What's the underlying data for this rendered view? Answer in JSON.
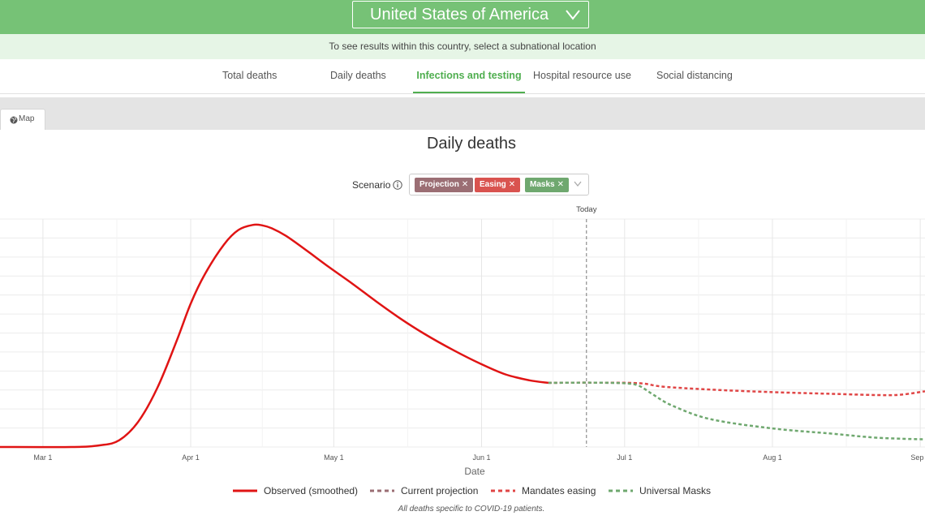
{
  "header": {
    "country": "United States of America",
    "subnational_hint": "To see results within this country, select a subnational location"
  },
  "tabs": [
    {
      "label": "Total deaths",
      "active": false
    },
    {
      "label": "Daily deaths",
      "active": false
    },
    {
      "label": "Infections and testing",
      "active": true
    },
    {
      "label": "Hospital resource use",
      "active": false
    },
    {
      "label": "Social distancing",
      "active": false
    }
  ],
  "view_tabs": {
    "map_label": "Map"
  },
  "scenario": {
    "label": "Scenario",
    "chips": [
      {
        "label": "Projection",
        "color": "#9b6e74"
      },
      {
        "label": "Easing",
        "color": "#d9534f"
      },
      {
        "label": "Masks",
        "color": "#6fa86f"
      }
    ]
  },
  "chart_data": {
    "type": "line",
    "title": "Daily deaths",
    "xlabel": "Date",
    "ylabel": "",
    "x_ticks": [
      "Mar 1",
      "Apr 1",
      "May 1",
      "Jun 1",
      "Jul 1",
      "Aug 1",
      "Sep 1"
    ],
    "x_tick_days": [
      0,
      31,
      61,
      92,
      122,
      153,
      184
    ],
    "xlim_days": [
      -9,
      185
    ],
    "ylim": [
      0,
      2700
    ],
    "today": {
      "label": "Today",
      "day": 114
    },
    "series": [
      {
        "name": "Observed (smoothed)",
        "color": "#e01414",
        "style": "solid",
        "x": [
          -9,
          6,
          12,
          16,
          20,
          24,
          28,
          31,
          34,
          38,
          41,
          44,
          46,
          48,
          51,
          55,
          60,
          65,
          70,
          75,
          80,
          86,
          92,
          97,
          102,
          106
        ],
        "y": [
          0,
          0,
          20,
          80,
          300,
          700,
          1250,
          1700,
          2050,
          2400,
          2570,
          2630,
          2625,
          2590,
          2500,
          2340,
          2130,
          1930,
          1720,
          1520,
          1340,
          1150,
          980,
          860,
          790,
          760
        ]
      },
      {
        "name": "Current projection",
        "color": "#9b6e74",
        "style": "dashed",
        "x": [
          106,
          112,
          120,
          125
        ],
        "y": [
          760,
          762,
          760,
          755
        ]
      },
      {
        "name": "Mandates easing",
        "color": "#e04646",
        "style": "dashed",
        "x": [
          106,
          115,
          125,
          130,
          140,
          153,
          165,
          175,
          180,
          185
        ],
        "y": [
          760,
          762,
          755,
          715,
          680,
          650,
          630,
          615,
          620,
          660
        ]
      },
      {
        "name": "Universal Masks",
        "color": "#6fa86f",
        "style": "dashed",
        "x": [
          106,
          115,
          122,
          125,
          128,
          132,
          140,
          153,
          165,
          175,
          185
        ],
        "y": [
          760,
          762,
          755,
          725,
          620,
          490,
          330,
          220,
          160,
          110,
          90
        ]
      }
    ]
  },
  "legend": [
    {
      "label": "Observed (smoothed)",
      "color": "#e01414",
      "dashed": false
    },
    {
      "label": "Current projection",
      "color": "#9b6e74",
      "dashed": true
    },
    {
      "label": "Mandates easing",
      "color": "#e04646",
      "dashed": true
    },
    {
      "label": "Universal Masks",
      "color": "#6fa86f",
      "dashed": true
    }
  ],
  "footnote": "All deaths specific to COVID-19 patients."
}
